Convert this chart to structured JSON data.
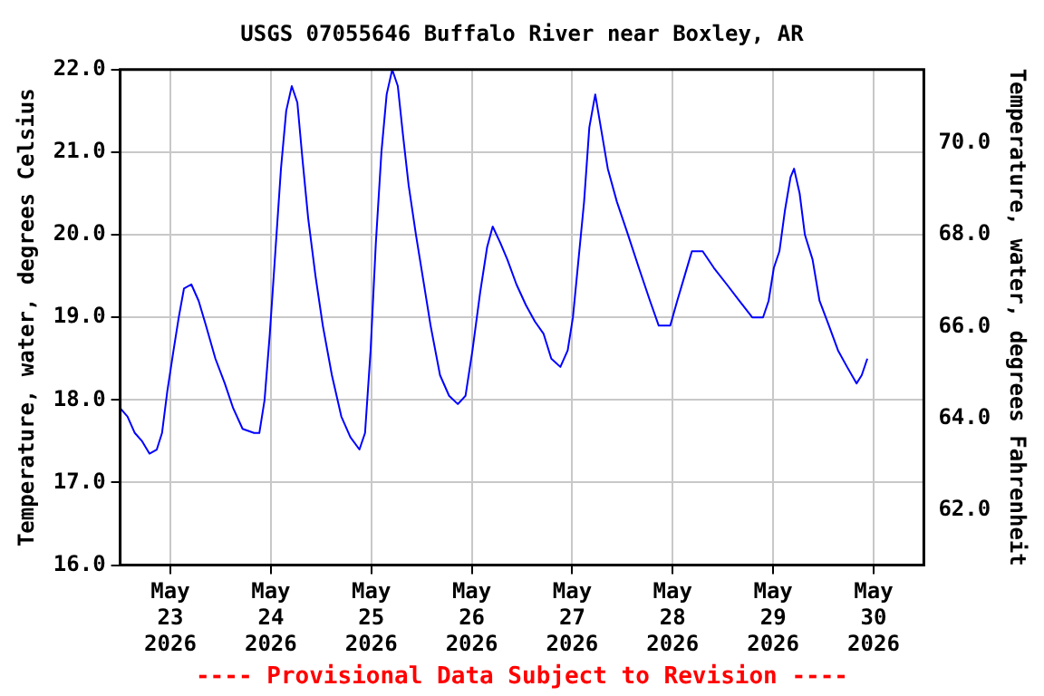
{
  "chart_data": {
    "type": "line",
    "title": "USGS 07055646 Buffalo River near Boxley, AR",
    "ylabel": "Temperature, water, degrees Celsius",
    "y2label": "Temperature, water, degrees Fahrenheit",
    "annotations": [
      "---- Provisional Data Subject to Revision ----"
    ],
    "xlim": [
      "2026-05-22T12:00",
      "2026-05-30T12:00"
    ],
    "xticks": [
      {
        "value": "2026-05-23",
        "label": "May 23 2026"
      },
      {
        "value": "2026-05-24",
        "label": "May 24 2026"
      },
      {
        "value": "2026-05-25",
        "label": "May 25 2026"
      },
      {
        "value": "2026-05-26",
        "label": "May 26 2026"
      },
      {
        "value": "2026-05-27",
        "label": "May 27 2026"
      },
      {
        "value": "2026-05-28",
        "label": "May 28 2026"
      },
      {
        "value": "2026-05-29",
        "label": "May 29 2026"
      },
      {
        "value": "2026-05-30",
        "label": "May 30 2026"
      }
    ],
    "ylim": [
      16,
      22
    ],
    "yticks": [
      {
        "value": 16,
        "label": "16.0"
      },
      {
        "value": 17,
        "label": "17.0"
      },
      {
        "value": 18,
        "label": "18.0"
      },
      {
        "value": 19,
        "label": "19.0"
      },
      {
        "value": 20,
        "label": "20.0"
      },
      {
        "value": 21,
        "label": "21.0"
      },
      {
        "value": 22,
        "label": "22.0"
      }
    ],
    "y2lim": [
      60.8,
      71.6
    ],
    "y2ticks": [
      {
        "value": 62,
        "label": "62.0"
      },
      {
        "value": 64,
        "label": "64.0"
      },
      {
        "value": 66,
        "label": "66.0"
      },
      {
        "value": 68,
        "label": "68.0"
      },
      {
        "value": 70,
        "label": "70.0"
      }
    ],
    "grid": true,
    "legend": false,
    "marker": "none",
    "line_style": "solid",
    "x": [
      "2026-05-22T12:00",
      "2026-05-22T13:45",
      "2026-05-22T15:30",
      "2026-05-22T17:15",
      "2026-05-22T19:00",
      "2026-05-22T20:45",
      "2026-05-22T22:00",
      "2026-05-22T23:15",
      "2026-05-23T00:45",
      "2026-05-23T02:00",
      "2026-05-23T03:15",
      "2026-05-23T05:00",
      "2026-05-23T06:45",
      "2026-05-23T08:30",
      "2026-05-23T10:45",
      "2026-05-23T13:00",
      "2026-05-23T15:00",
      "2026-05-23T17:15",
      "2026-05-23T20:00",
      "2026-05-23T21:15",
      "2026-05-23T22:30",
      "2026-05-23T23:45",
      "2026-05-24T01:05",
      "2026-05-24T02:25",
      "2026-05-24T03:40",
      "2026-05-24T05:00",
      "2026-05-24T06:20",
      "2026-05-24T07:35",
      "2026-05-24T08:55",
      "2026-05-24T10:40",
      "2026-05-24T12:25",
      "2026-05-24T14:35",
      "2026-05-24T16:50",
      "2026-05-24T19:00",
      "2026-05-24T21:10",
      "2026-05-24T22:30",
      "2026-05-24T23:50",
      "2026-05-25T01:05",
      "2026-05-25T02:25",
      "2026-05-25T03:40",
      "2026-05-25T05:00",
      "2026-05-25T06:20",
      "2026-05-25T07:35",
      "2026-05-25T08:55",
      "2026-05-25T10:40",
      "2026-05-25T12:25",
      "2026-05-25T14:10",
      "2026-05-25T16:25",
      "2026-05-25T18:35",
      "2026-05-25T20:40",
      "2026-05-25T22:30",
      "2026-05-26T00:10",
      "2026-05-26T02:00",
      "2026-05-26T03:40",
      "2026-05-26T05:00",
      "2026-05-26T06:50",
      "2026-05-26T08:30",
      "2026-05-26T10:40",
      "2026-05-26T12:55",
      "2026-05-26T15:05",
      "2026-05-26T17:10",
      "2026-05-26T19:00",
      "2026-05-26T21:10",
      "2026-05-26T22:55",
      "2026-05-27T00:10",
      "2026-05-27T01:30",
      "2026-05-27T02:50",
      "2026-05-27T04:05",
      "2026-05-27T05:30",
      "2026-05-27T06:50",
      "2026-05-27T08:30",
      "2026-05-27T10:40",
      "2026-05-27T13:20",
      "2026-05-27T15:55",
      "2026-05-27T18:35",
      "2026-05-27T20:40",
      "2026-05-27T23:25",
      "2026-05-28T01:05",
      "2026-05-28T02:50",
      "2026-05-28T04:35",
      "2026-05-28T07:10",
      "2026-05-28T09:50",
      "2026-05-28T12:55",
      "2026-05-28T15:55",
      "2026-05-28T19:00",
      "2026-05-28T21:35",
      "2026-05-28T22:55",
      "2026-05-29T00:10",
      "2026-05-29T01:30",
      "2026-05-29T02:50",
      "2026-05-29T04:10",
      "2026-05-29T05:00",
      "2026-05-29T06:20",
      "2026-05-29T07:35",
      "2026-05-29T09:25",
      "2026-05-29T11:05",
      "2026-05-29T13:20",
      "2026-05-29T15:30",
      "2026-05-29T17:40",
      "2026-05-29T19:55",
      "2026-05-29T21:10",
      "2026-05-29T22:30"
    ],
    "series": [
      {
        "color": "#0000ff",
        "values": [
          17.9,
          17.8,
          17.6,
          17.5,
          17.35,
          17.4,
          17.6,
          18.1,
          18.6,
          19.0,
          19.35,
          19.4,
          19.2,
          18.9,
          18.5,
          18.2,
          17.9,
          17.65,
          17.6,
          17.6,
          18.0,
          18.8,
          19.8,
          20.8,
          21.5,
          21.8,
          21.6,
          20.9,
          20.2,
          19.5,
          18.9,
          18.3,
          17.8,
          17.55,
          17.4,
          17.6,
          18.6,
          19.9,
          21.0,
          21.7,
          22.0,
          21.8,
          21.2,
          20.6,
          20.0,
          19.45,
          18.9,
          18.3,
          18.05,
          17.95,
          18.05,
          18.6,
          19.3,
          19.85,
          20.1,
          19.9,
          19.7,
          19.4,
          19.15,
          18.95,
          18.8,
          18.5,
          18.4,
          18.6,
          19.0,
          19.7,
          20.4,
          21.3,
          21.7,
          21.3,
          20.8,
          20.4,
          20.0,
          19.6,
          19.2,
          18.9,
          18.9,
          19.2,
          19.5,
          19.8,
          19.8,
          19.6,
          19.4,
          19.2,
          19.0,
          19.0,
          19.2,
          19.6,
          19.8,
          20.3,
          20.7,
          20.8,
          20.5,
          20.0,
          19.7,
          19.2,
          18.9,
          18.6,
          18.4,
          18.2,
          18.3,
          18.5
        ]
      }
    ]
  }
}
